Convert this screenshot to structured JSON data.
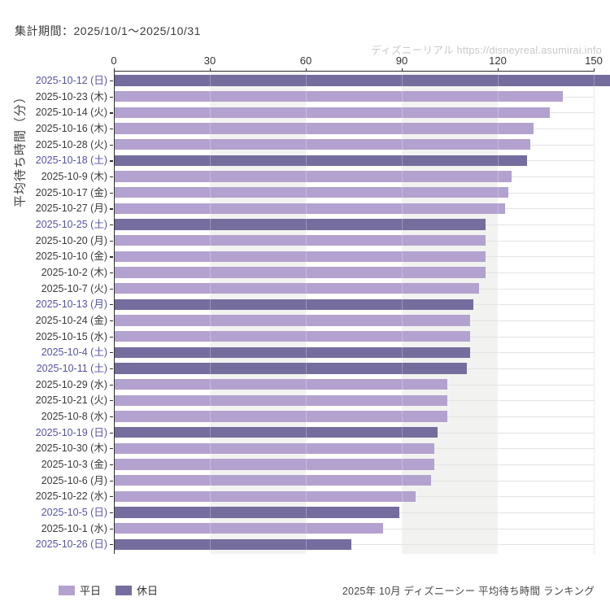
{
  "header": {
    "period_label": "集計期間：2025/10/1～2025/10/31",
    "watermark": "ディズニーリアル https://disneyreal.asumirai.info"
  },
  "chart_data": {
    "type": "bar",
    "orientation": "horizontal",
    "caption": "2025年 10月 ディズニーシー 平均待ち時間 ランキング",
    "ylabel": "平均待ち時間（分）",
    "x_ticks": [
      0,
      30,
      60,
      90,
      120,
      150
    ],
    "xlim": [
      0,
      155
    ],
    "unit": "分",
    "legend": [
      {
        "label": "平日",
        "key": "weekday",
        "color": "#b3a2cf"
      },
      {
        "label": "休日",
        "key": "holiday",
        "color": "#746d9e"
      }
    ],
    "bars": [
      {
        "label": "2025-10-12 (日)",
        "value": 155,
        "day_type": "holiday"
      },
      {
        "label": "2025-10-23 (木)",
        "value": 140,
        "day_type": "weekday"
      },
      {
        "label": "2025-10-14 (火)",
        "value": 136,
        "day_type": "weekday"
      },
      {
        "label": "2025-10-16 (木)",
        "value": 131,
        "day_type": "weekday"
      },
      {
        "label": "2025-10-28 (火)",
        "value": 130,
        "day_type": "weekday"
      },
      {
        "label": "2025-10-18 (土)",
        "value": 129,
        "day_type": "holiday"
      },
      {
        "label": "2025-10-9 (木)",
        "value": 124,
        "day_type": "weekday"
      },
      {
        "label": "2025-10-17 (金)",
        "value": 123,
        "day_type": "weekday"
      },
      {
        "label": "2025-10-27 (月)",
        "value": 122,
        "day_type": "weekday"
      },
      {
        "label": "2025-10-25 (土)",
        "value": 116,
        "day_type": "holiday"
      },
      {
        "label": "2025-10-20 (月)",
        "value": 116,
        "day_type": "weekday"
      },
      {
        "label": "2025-10-10 (金)",
        "value": 116,
        "day_type": "weekday"
      },
      {
        "label": "2025-10-2 (木)",
        "value": 116,
        "day_type": "weekday"
      },
      {
        "label": "2025-10-7 (火)",
        "value": 114,
        "day_type": "weekday"
      },
      {
        "label": "2025-10-13 (月)",
        "value": 112,
        "day_type": "holiday"
      },
      {
        "label": "2025-10-24 (金)",
        "value": 111,
        "day_type": "weekday"
      },
      {
        "label": "2025-10-15 (水)",
        "value": 111,
        "day_type": "weekday"
      },
      {
        "label": "2025-10-4 (土)",
        "value": 111,
        "day_type": "holiday"
      },
      {
        "label": "2025-10-11 (土)",
        "value": 110,
        "day_type": "holiday"
      },
      {
        "label": "2025-10-29 (水)",
        "value": 104,
        "day_type": "weekday"
      },
      {
        "label": "2025-10-21 (火)",
        "value": 104,
        "day_type": "weekday"
      },
      {
        "label": "2025-10-8 (水)",
        "value": 104,
        "day_type": "weekday"
      },
      {
        "label": "2025-10-19 (日)",
        "value": 101,
        "day_type": "holiday"
      },
      {
        "label": "2025-10-30 (木)",
        "value": 100,
        "day_type": "weekday"
      },
      {
        "label": "2025-10-3 (金)",
        "value": 100,
        "day_type": "weekday"
      },
      {
        "label": "2025-10-6 (月)",
        "value": 99,
        "day_type": "weekday"
      },
      {
        "label": "2025-10-22 (水)",
        "value": 94,
        "day_type": "weekday"
      },
      {
        "label": "2025-10-5 (日)",
        "value": 89,
        "day_type": "holiday"
      },
      {
        "label": "2025-10-1 (水)",
        "value": 84,
        "day_type": "weekday"
      },
      {
        "label": "2025-10-26 (日)",
        "value": 74,
        "day_type": "holiday"
      }
    ],
    "colors": {
      "weekday_bar": "#b3a2cf",
      "holiday_bar": "#746d9e",
      "weekday_label": "#3a3a3a",
      "holiday_label": "#5652a8",
      "stripe": "#f2f3f0",
      "gridline": "#e3e3e3",
      "spine": "#2f2f2f"
    },
    "grid": {
      "stripe_bands": [
        [
          30,
          60
        ],
        [
          90,
          120
        ],
        [
          150,
          180
        ]
      ],
      "h_gridlines": true
    },
    "legend_position": "bottom-left"
  }
}
